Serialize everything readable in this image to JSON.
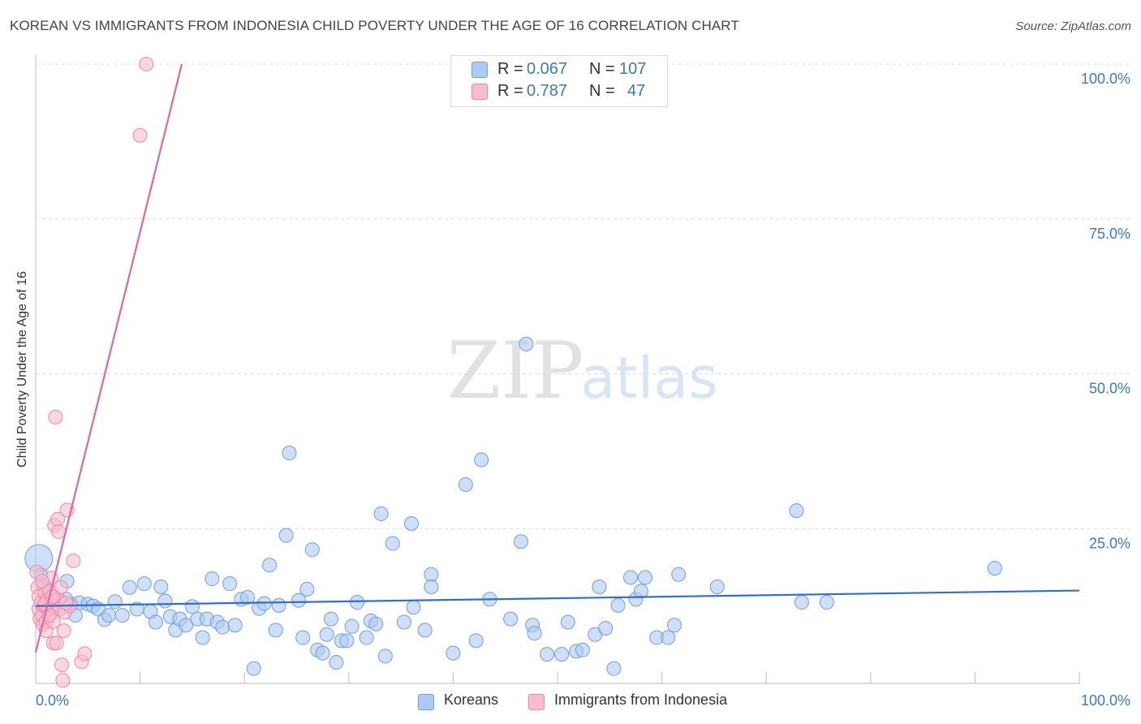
{
  "title": "KOREAN VS IMMIGRANTS FROM INDONESIA CHILD POVERTY UNDER THE AGE OF 16 CORRELATION CHART",
  "source": "Source: ZipAtlas.com",
  "watermark": {
    "zip": "ZIP",
    "atlas": "atlas"
  },
  "legend": {
    "koreans": {
      "r_label": "R =",
      "r_value": "0.067",
      "n_label": "N =",
      "n_value": "107"
    },
    "indonesia": {
      "r_label": "R =",
      "r_value": "0.787",
      "n_label": "N =",
      "n_value": "47"
    }
  },
  "bottom_legend": {
    "koreans": "Koreans",
    "indonesia": "Immigrants from Indonesia"
  },
  "colors": {
    "koreans_fill": "#aec9f2",
    "koreans_stroke": "#6f9fdd",
    "koreans_line": "#2f6fcf",
    "indonesia_fill": "#f7bccd",
    "indonesia_stroke": "#ec8aa8",
    "indonesia_line": "#e8649a",
    "tick_text": "#3a78c9",
    "grid": "#dcdcdc"
  },
  "chart_data": {
    "type": "scatter",
    "title": "KOREAN VS IMMIGRANTS FROM INDONESIA CHILD POVERTY UNDER THE AGE OF 16 CORRELATION CHART",
    "xlabel": "",
    "ylabel": "Child Poverty Under the Age of 16",
    "xlim": [
      0,
      100
    ],
    "ylim": [
      0,
      100
    ],
    "x_tick_labels": [
      "0.0%",
      "100.0%"
    ],
    "y_ticks": [
      25,
      50,
      75,
      100
    ],
    "y_tick_labels": [
      "25.0%",
      "50.0%",
      "75.0%",
      "100.0%"
    ],
    "grid": true,
    "series": [
      {
        "name": "Koreans",
        "r": 0.067,
        "n": 107,
        "trendline": {
          "x": [
            0,
            100
          ],
          "y": [
            12.5,
            15.0
          ]
        },
        "points": [
          {
            "x": 0.3,
            "y": 20.2,
            "big": true
          },
          {
            "x": 0.5,
            "y": 17.5
          },
          {
            "x": 0.8,
            "y": 15.8
          },
          {
            "x": 1.2,
            "y": 14.8
          },
          {
            "x": 1.5,
            "y": 13.5
          },
          {
            "x": 2.0,
            "y": 13.2
          },
          {
            "x": 2.5,
            "y": 13.0
          },
          {
            "x": 3.0,
            "y": 16.5
          },
          {
            "x": 3.4,
            "y": 12.8
          },
          {
            "x": 3.8,
            "y": 11.0
          },
          {
            "x": 4.2,
            "y": 13.0
          },
          {
            "x": 5.0,
            "y": 12.8
          },
          {
            "x": 5.5,
            "y": 12.5
          },
          {
            "x": 6.0,
            "y": 12.0
          },
          {
            "x": 6.6,
            "y": 10.3
          },
          {
            "x": 7.0,
            "y": 11.0
          },
          {
            "x": 7.6,
            "y": 13.2
          },
          {
            "x": 8.3,
            "y": 11.0
          },
          {
            "x": 9.0,
            "y": 15.5
          },
          {
            "x": 9.7,
            "y": 12.0
          },
          {
            "x": 10.4,
            "y": 16.1
          },
          {
            "x": 11.0,
            "y": 11.6
          },
          {
            "x": 11.5,
            "y": 9.9
          },
          {
            "x": 12.0,
            "y": 15.6
          },
          {
            "x": 12.4,
            "y": 13.3
          },
          {
            "x": 12.9,
            "y": 10.8
          },
          {
            "x": 13.4,
            "y": 8.6
          },
          {
            "x": 13.8,
            "y": 10.4
          },
          {
            "x": 14.4,
            "y": 9.4
          },
          {
            "x": 15.0,
            "y": 12.4
          },
          {
            "x": 15.5,
            "y": 10.4
          },
          {
            "x": 16.0,
            "y": 7.4
          },
          {
            "x": 16.4,
            "y": 10.4
          },
          {
            "x": 16.9,
            "y": 16.9
          },
          {
            "x": 17.4,
            "y": 9.9
          },
          {
            "x": 17.9,
            "y": 9.1
          },
          {
            "x": 18.6,
            "y": 16.1
          },
          {
            "x": 19.1,
            "y": 9.4
          },
          {
            "x": 19.7,
            "y": 13.6
          },
          {
            "x": 20.3,
            "y": 13.9
          },
          {
            "x": 20.9,
            "y": 2.4
          },
          {
            "x": 21.4,
            "y": 12.1
          },
          {
            "x": 21.9,
            "y": 12.9
          },
          {
            "x": 22.4,
            "y": 19.1
          },
          {
            "x": 23.0,
            "y": 8.6
          },
          {
            "x": 23.3,
            "y": 12.6
          },
          {
            "x": 24.0,
            "y": 23.9
          },
          {
            "x": 24.3,
            "y": 37.2
          },
          {
            "x": 25.2,
            "y": 13.4
          },
          {
            "x": 25.6,
            "y": 7.4
          },
          {
            "x": 26.0,
            "y": 15.2
          },
          {
            "x": 26.5,
            "y": 21.6
          },
          {
            "x": 27.0,
            "y": 5.4
          },
          {
            "x": 27.5,
            "y": 4.9
          },
          {
            "x": 27.9,
            "y": 7.9
          },
          {
            "x": 28.3,
            "y": 10.4
          },
          {
            "x": 28.8,
            "y": 3.4
          },
          {
            "x": 29.3,
            "y": 6.9
          },
          {
            "x": 29.8,
            "y": 6.9
          },
          {
            "x": 30.3,
            "y": 9.2
          },
          {
            "x": 30.8,
            "y": 13.1
          },
          {
            "x": 31.7,
            "y": 7.4
          },
          {
            "x": 32.1,
            "y": 10.1
          },
          {
            "x": 32.6,
            "y": 9.6
          },
          {
            "x": 33.1,
            "y": 27.4
          },
          {
            "x": 33.5,
            "y": 4.4
          },
          {
            "x": 34.2,
            "y": 22.6
          },
          {
            "x": 35.3,
            "y": 9.9
          },
          {
            "x": 36.0,
            "y": 25.8
          },
          {
            "x": 36.2,
            "y": 12.3
          },
          {
            "x": 37.3,
            "y": 8.6
          },
          {
            "x": 37.9,
            "y": 17.6
          },
          {
            "x": 37.9,
            "y": 15.6
          },
          {
            "x": 40.0,
            "y": 4.9
          },
          {
            "x": 41.2,
            "y": 32.1
          },
          {
            "x": 42.2,
            "y": 6.9
          },
          {
            "x": 42.7,
            "y": 36.1
          },
          {
            "x": 43.5,
            "y": 13.6
          },
          {
            "x": 45.5,
            "y": 10.4
          },
          {
            "x": 46.5,
            "y": 22.9
          },
          {
            "x": 47.0,
            "y": 54.8
          },
          {
            "x": 47.6,
            "y": 9.4
          },
          {
            "x": 47.8,
            "y": 8.1
          },
          {
            "x": 49.0,
            "y": 4.7
          },
          {
            "x": 50.4,
            "y": 4.7
          },
          {
            "x": 51.0,
            "y": 9.9
          },
          {
            "x": 51.8,
            "y": 5.2
          },
          {
            "x": 52.4,
            "y": 5.4
          },
          {
            "x": 53.6,
            "y": 7.9
          },
          {
            "x": 54.0,
            "y": 15.6
          },
          {
            "x": 54.6,
            "y": 8.9
          },
          {
            "x": 55.4,
            "y": 2.4
          },
          {
            "x": 55.8,
            "y": 12.6
          },
          {
            "x": 57.0,
            "y": 17.1
          },
          {
            "x": 57.5,
            "y": 13.6
          },
          {
            "x": 58.0,
            "y": 14.9
          },
          {
            "x": 58.4,
            "y": 17.1
          },
          {
            "x": 59.5,
            "y": 7.4
          },
          {
            "x": 60.6,
            "y": 7.4
          },
          {
            "x": 61.2,
            "y": 9.4
          },
          {
            "x": 61.6,
            "y": 17.6
          },
          {
            "x": 65.3,
            "y": 15.6
          },
          {
            "x": 72.9,
            "y": 27.9
          },
          {
            "x": 73.4,
            "y": 13.1
          },
          {
            "x": 75.8,
            "y": 13.1
          },
          {
            "x": 91.9,
            "y": 18.6
          },
          {
            "x": 2.9,
            "y": 13.6
          }
        ]
      },
      {
        "name": "Immigrants from Indonesia",
        "r": 0.787,
        "n": 47,
        "trendline": {
          "x": [
            0,
            14.0
          ],
          "y": [
            5.0,
            100.0
          ]
        },
        "points": [
          {
            "x": 0.1,
            "y": 18.0
          },
          {
            "x": 0.2,
            "y": 15.5
          },
          {
            "x": 0.3,
            "y": 14.0
          },
          {
            "x": 0.3,
            "y": 12.0
          },
          {
            "x": 0.4,
            "y": 10.5
          },
          {
            "x": 0.5,
            "y": 13.0
          },
          {
            "x": 0.6,
            "y": 11.0
          },
          {
            "x": 0.7,
            "y": 9.5
          },
          {
            "x": 0.8,
            "y": 12.5
          },
          {
            "x": 0.9,
            "y": 14.5
          },
          {
            "x": 1.0,
            "y": 10.0
          },
          {
            "x": 1.0,
            "y": 8.5
          },
          {
            "x": 1.1,
            "y": 13.5
          },
          {
            "x": 1.2,
            "y": 12.0
          },
          {
            "x": 1.3,
            "y": 15.0
          },
          {
            "x": 1.4,
            "y": 11.5
          },
          {
            "x": 1.5,
            "y": 17.0
          },
          {
            "x": 1.5,
            "y": 13.0
          },
          {
            "x": 1.6,
            "y": 12.5
          },
          {
            "x": 1.7,
            "y": 6.5
          },
          {
            "x": 1.7,
            "y": 10.0
          },
          {
            "x": 1.8,
            "y": 14.0
          },
          {
            "x": 1.8,
            "y": 25.5
          },
          {
            "x": 1.9,
            "y": 43.0
          },
          {
            "x": 2.0,
            "y": 6.5
          },
          {
            "x": 2.0,
            "y": 12.5
          },
          {
            "x": 2.1,
            "y": 26.5
          },
          {
            "x": 2.2,
            "y": 13.5
          },
          {
            "x": 2.2,
            "y": 24.5
          },
          {
            "x": 2.3,
            "y": 12.0
          },
          {
            "x": 2.4,
            "y": 15.5
          },
          {
            "x": 2.5,
            "y": 3.0
          },
          {
            "x": 2.6,
            "y": 0.5
          },
          {
            "x": 2.7,
            "y": 8.5
          },
          {
            "x": 2.8,
            "y": 11.5
          },
          {
            "x": 3.0,
            "y": 28.0
          },
          {
            "x": 3.3,
            "y": 12.5
          },
          {
            "x": 3.6,
            "y": 19.8
          },
          {
            "x": 4.4,
            "y": 3.5
          },
          {
            "x": 4.7,
            "y": 4.8
          },
          {
            "x": 10.0,
            "y": 88.5
          },
          {
            "x": 10.6,
            "y": 100.0
          },
          {
            "x": 0.6,
            "y": 16.5
          },
          {
            "x": 1.3,
            "y": 11.0
          },
          {
            "x": 0.9,
            "y": 12.8
          },
          {
            "x": 1.6,
            "y": 14.0
          },
          {
            "x": 2.9,
            "y": 13.0
          }
        ]
      }
    ]
  }
}
